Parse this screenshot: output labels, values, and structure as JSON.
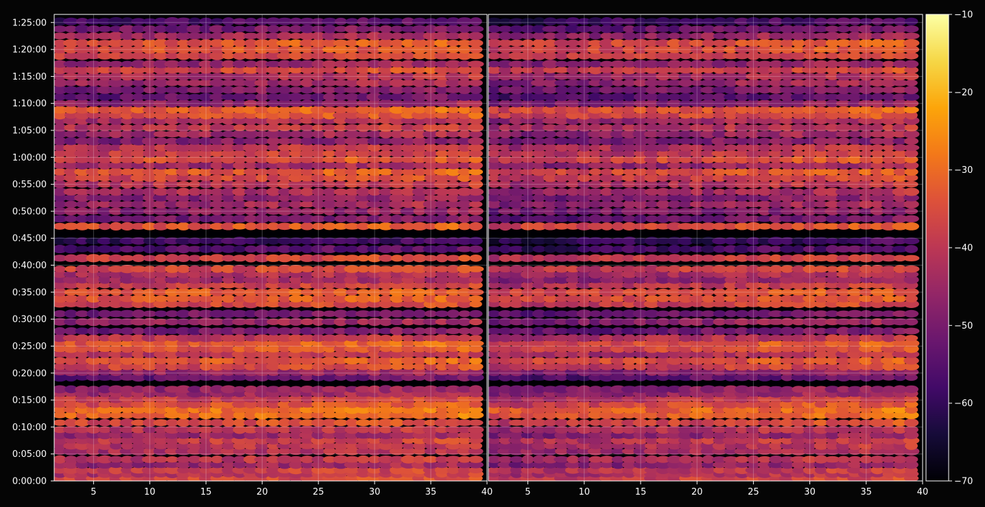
{
  "chart_data": {
    "type": "heatmap",
    "title": "",
    "xlabel": "",
    "ylabel": "",
    "panels": [
      {
        "name": "",
        "xlim": [
          1.5,
          40
        ],
        "x_ticks": [
          5,
          10,
          15,
          20,
          25,
          30,
          35,
          40
        ]
      },
      {
        "name": "",
        "xlim": [
          1.5,
          40
        ],
        "x_ticks": [
          5,
          10,
          15,
          20,
          25,
          30,
          35,
          40
        ]
      }
    ],
    "y_ticks": [
      "0:00:00",
      "0:05:00",
      "0:10:00",
      "0:15:00",
      "0:20:00",
      "0:25:00",
      "0:30:00",
      "0:35:00",
      "0:40:00",
      "0:45:00",
      "0:50:00",
      "0:55:00",
      "1:00:00",
      "1:05:00",
      "1:10:00",
      "1:15:00",
      "1:20:00",
      "1:25:00"
    ],
    "y_range_minutes": [
      0,
      86.5
    ],
    "colorbar": {
      "colormap": "inferno",
      "range": [
        -70,
        -10
      ],
      "ticks": [
        "−10",
        "−20",
        "−30",
        "−40",
        "−50",
        "−60",
        "−70"
      ],
      "tick_values": [
        -10,
        -20,
        -30,
        -40,
        -50,
        -60,
        -70
      ]
    },
    "grid": true,
    "bands": [
      {
        "t": 0.5,
        "v": -36
      },
      {
        "t": 1.3,
        "v": -40
      },
      {
        "t": 2.0,
        "v": -38
      },
      {
        "t": 3.0,
        "v": -45
      },
      {
        "t": 4.0,
        "v": -40
      },
      {
        "t": 5.5,
        "v": -42
      },
      {
        "t": 6.5,
        "v": -40
      },
      {
        "t": 7.5,
        "v": -38
      },
      {
        "t": 8.5,
        "v": -45
      },
      {
        "t": 9.5,
        "v": -40
      },
      {
        "t": 10.8,
        "v": -35
      },
      {
        "t": 12.2,
        "v": -30
      },
      {
        "t": 13.2,
        "v": -29
      },
      {
        "t": 14.2,
        "v": -34
      },
      {
        "t": 15.2,
        "v": -38
      },
      {
        "t": 16.2,
        "v": -44
      },
      {
        "t": 17.0,
        "v": -46
      },
      {
        "t": 19.2,
        "v": -52
      },
      {
        "t": 20.2,
        "v": -45
      },
      {
        "t": 21.2,
        "v": -36
      },
      {
        "t": 22.3,
        "v": -33
      },
      {
        "t": 23.5,
        "v": -40
      },
      {
        "t": 24.5,
        "v": -34
      },
      {
        "t": 25.5,
        "v": -32
      },
      {
        "t": 26.5,
        "v": -40
      },
      {
        "t": 27.8,
        "v": -50
      },
      {
        "t": 29.5,
        "v": -45
      },
      {
        "t": 31.0,
        "v": -50
      },
      {
        "t": 32.8,
        "v": -36
      },
      {
        "t": 33.8,
        "v": -33
      },
      {
        "t": 35.0,
        "v": -33
      },
      {
        "t": 36.3,
        "v": -38
      },
      {
        "t": 37.3,
        "v": -44
      },
      {
        "t": 38.3,
        "v": -42
      },
      {
        "t": 39.3,
        "v": -36
      },
      {
        "t": 41.3,
        "v": -37
      },
      {
        "t": 43.0,
        "v": -55
      },
      {
        "t": 44.5,
        "v": -58
      },
      {
        "t": 47.2,
        "v": -33
      },
      {
        "t": 48.6,
        "v": -50
      },
      {
        "t": 50.0,
        "v": -47
      },
      {
        "t": 51.3,
        "v": -44
      },
      {
        "t": 52.5,
        "v": -47
      },
      {
        "t": 53.6,
        "v": -42
      },
      {
        "t": 55.0,
        "v": -40
      },
      {
        "t": 56.2,
        "v": -36
      },
      {
        "t": 57.3,
        "v": -33
      },
      {
        "t": 58.5,
        "v": -44
      },
      {
        "t": 59.6,
        "v": -34
      },
      {
        "t": 60.7,
        "v": -38
      },
      {
        "t": 61.8,
        "v": -40
      },
      {
        "t": 63.0,
        "v": -48
      },
      {
        "t": 64.3,
        "v": -44
      },
      {
        "t": 65.5,
        "v": -40
      },
      {
        "t": 66.8,
        "v": -42
      },
      {
        "t": 67.8,
        "v": -34
      },
      {
        "t": 68.8,
        "v": -32
      },
      {
        "t": 70.0,
        "v": -46
      },
      {
        "t": 71.2,
        "v": -52
      },
      {
        "t": 72.5,
        "v": -48
      },
      {
        "t": 73.8,
        "v": -44
      },
      {
        "t": 75.0,
        "v": -42
      },
      {
        "t": 76.2,
        "v": -36
      },
      {
        "t": 77.3,
        "v": -45
      },
      {
        "t": 78.8,
        "v": -36
      },
      {
        "t": 80.0,
        "v": -34
      },
      {
        "t": 81.2,
        "v": -33
      },
      {
        "t": 82.5,
        "v": -44
      },
      {
        "t": 83.8,
        "v": -50
      },
      {
        "t": 85.2,
        "v": -56
      }
    ]
  }
}
